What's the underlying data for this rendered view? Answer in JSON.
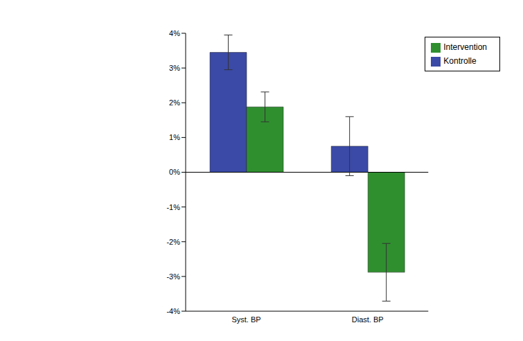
{
  "chart_data": {
    "type": "bar",
    "categories": [
      "Syst. BP",
      "Diast. BP"
    ],
    "series": [
      {
        "name": "Kontrolle",
        "color": "#3b4aa6",
        "values": [
          3.45,
          0.75
        ],
        "errors": [
          0.5,
          0.85
        ]
      },
      {
        "name": "Intervention",
        "color": "#2f8f2f",
        "values": [
          1.88,
          -2.88
        ],
        "errors": [
          0.43,
          0.83
        ]
      }
    ],
    "ylim": [
      -4,
      4
    ],
    "yticks": [
      {
        "value": -4,
        "label": "-4%"
      },
      {
        "value": -3,
        "label": "-3%"
      },
      {
        "value": -2,
        "label": "-2%"
      },
      {
        "value": -1,
        "label": "-1%"
      },
      {
        "value": 0,
        "label": "0%"
      },
      {
        "value": 1,
        "label": "1%"
      },
      {
        "value": 2,
        "label": "2%"
      },
      {
        "value": 3,
        "label": "3%"
      },
      {
        "value": 4,
        "label": "4%"
      }
    ],
    "grid": false,
    "legend": "top-right"
  }
}
